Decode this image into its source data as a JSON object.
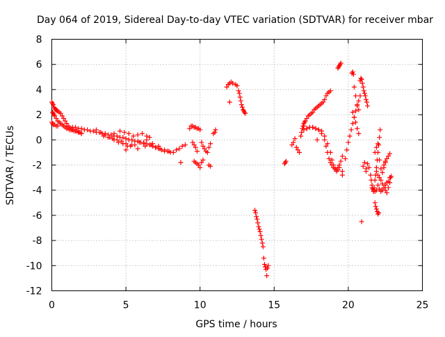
{
  "chart_data": {
    "type": "scatter",
    "title": "Day 064 of 2019, Sidereal Day-to-day VTEC variation (SDTVAR) for receiver mbar",
    "xlabel": "GPS time / hours",
    "ylabel": "SDTVAR / TECUs",
    "xlim": [
      0,
      25
    ],
    "ylim": [
      -12,
      8
    ],
    "xticks": [
      0,
      5,
      10,
      15,
      20,
      25
    ],
    "yticks": [
      -12,
      -10,
      -8,
      -6,
      -4,
      -2,
      0,
      2,
      4,
      6,
      8
    ],
    "xtick_labels": [
      "0",
      "5",
      "10",
      "15",
      "20",
      "25"
    ],
    "ytick_labels": [
      "-12",
      "-10",
      "-8",
      "-6",
      "-4",
      "-2",
      "0",
      "2",
      "4",
      "6",
      "8"
    ],
    "grid": true,
    "marker": "+",
    "series": [
      {
        "name": "SDTVAR",
        "color": "#ff0000",
        "x": [
          0.0,
          0.05,
          0.1,
          0.15,
          0.2,
          0.25,
          0.3,
          0.35,
          0.4,
          0.5,
          0.6,
          0.7,
          0.8,
          0.9,
          1.0,
          1.1,
          1.2,
          1.3,
          1.4,
          1.5,
          1.6,
          1.7,
          1.8,
          1.9,
          2.0,
          0.05,
          0.1,
          0.15,
          0.2,
          0.3,
          0.4,
          0.5,
          0.6,
          0.7,
          0.8,
          0.9,
          1.0,
          1.1,
          1.2,
          1.3,
          1.4,
          1.5,
          1.6,
          1.7,
          1.8,
          1.9,
          2.0,
          0.0,
          0.05,
          0.1,
          0.2,
          0.3,
          0.4,
          1.4,
          1.6,
          1.8,
          2.0,
          2.2,
          2.4,
          2.6,
          2.8,
          3.0,
          3.2,
          3.4,
          3.6,
          3.8,
          4.0,
          4.2,
          4.4,
          4.6,
          4.8,
          5.0,
          5.2,
          5.4,
          5.6,
          5.8,
          6.0,
          6.2,
          6.4,
          6.6,
          6.8,
          7.0,
          7.2,
          7.4,
          7.6,
          7.8,
          8.0,
          8.2,
          8.4,
          8.6,
          8.8,
          9.0,
          3.0,
          3.3,
          3.6,
          3.9,
          4.2,
          4.5,
          4.8,
          5.1,
          5.4,
          3.5,
          3.8,
          4.1,
          4.4,
          4.7,
          5.0,
          5.3,
          5.6,
          5.9,
          6.2,
          6.4,
          6.6,
          4.2,
          4.6,
          4.9,
          5.2,
          5.5,
          5.8,
          6.1,
          6.4,
          6.7,
          7.0,
          7.3,
          7.6,
          7.9,
          5.0,
          5.8,
          6.3,
          6.8,
          7.2,
          8.7,
          9.3,
          9.4,
          9.5,
          9.6,
          9.7,
          9.8,
          9.9,
          10.0,
          10.1,
          10.2,
          10.3,
          10.4,
          10.5,
          10.6,
          10.7,
          9.6,
          9.7,
          9.8,
          9.9,
          10.0,
          10.1,
          10.2,
          9.5,
          9.6,
          9.7,
          9.8,
          10.6,
          10.7,
          10.9,
          11.0,
          11.05,
          11.8,
          11.9,
          12.0,
          12.1,
          12.2,
          12.4,
          12.5,
          12.6,
          12.65,
          12.7,
          12.75,
          12.8,
          12.85,
          12.9,
          12.95,
          13.0,
          13.05,
          12.0,
          13.7,
          13.75,
          13.8,
          13.85,
          13.9,
          13.95,
          14.0,
          14.05,
          14.1,
          14.15,
          14.2,
          14.25,
          14.3,
          14.35,
          14.4,
          14.45,
          14.5,
          14.55,
          14.6,
          15.7,
          15.75,
          15.8,
          16.2,
          16.3,
          16.4,
          16.5,
          16.6,
          16.7,
          16.8,
          16.85,
          16.9,
          16.95,
          17.0,
          17.05,
          17.1,
          17.2,
          17.3,
          17.4,
          17.5,
          17.6,
          17.7,
          17.8,
          17.9,
          18.0,
          18.1,
          18.2,
          18.3,
          18.4,
          18.5,
          18.6,
          18.7,
          18.8,
          17.0,
          17.2,
          17.4,
          17.6,
          17.8,
          18.0,
          18.2,
          18.4,
          18.6,
          18.8,
          18.9,
          19.0,
          19.1,
          19.2,
          19.3,
          19.4,
          19.5,
          19.6,
          17.0,
          17.2,
          17.4,
          17.6,
          17.8,
          18.0,
          18.2,
          18.4,
          18.5,
          18.6,
          18.7,
          18.8,
          18.9,
          19.0,
          19.1,
          19.2,
          19.3,
          19.4,
          19.6,
          17.9,
          19.3,
          19.35,
          19.4,
          19.45,
          19.5,
          19.6,
          19.8,
          19.9,
          20.0,
          20.1,
          20.2,
          20.3,
          20.4,
          20.5,
          20.6,
          20.7,
          20.8,
          20.25,
          20.3,
          20.35,
          20.4,
          20.5,
          20.6,
          20.7,
          20.3,
          20.4,
          20.5,
          20.6,
          20.7,
          20.8,
          20.85,
          20.9,
          20.95,
          21.0,
          21.05,
          21.1,
          21.15,
          21.2,
          21.25,
          21.3,
          21.1,
          21.2,
          21.0,
          21.2,
          21.3,
          20.9,
          21.4,
          21.5,
          21.55,
          21.6,
          21.65,
          21.7,
          21.75,
          21.8,
          21.85,
          21.9,
          21.95,
          22.0,
          22.05,
          22.1,
          22.15,
          21.8,
          21.85,
          21.9,
          21.95,
          22.0,
          22.05,
          21.9,
          22.0,
          22.1,
          22.2,
          22.3,
          22.4,
          22.5,
          22.6,
          22.7,
          22.8,
          22.85,
          22.9,
          21.8,
          21.9,
          22.0,
          22.1,
          22.2,
          22.3,
          22.4,
          22.5,
          22.6,
          22.7,
          22.8,
          21.6,
          21.7,
          21.8,
          21.9,
          22.0,
          22.1,
          22.2,
          22.3,
          22.4,
          22.5,
          22.6,
          22.7,
          22.8,
          22.4,
          22.5
        ],
        "y": [
          3.0,
          2.9,
          2.8,
          2.6,
          2.5,
          2.4,
          2.4,
          2.3,
          2.3,
          2.2,
          2.1,
          1.9,
          1.7,
          1.5,
          1.3,
          1.1,
          1.0,
          0.9,
          0.8,
          0.8,
          0.7,
          0.7,
          0.6,
          0.6,
          0.5,
          2.2,
          2.1,
          2.0,
          1.9,
          1.7,
          1.5,
          1.4,
          1.3,
          1.2,
          1.1,
          1.0,
          0.9,
          0.9,
          0.8,
          0.8,
          0.8,
          0.7,
          0.7,
          0.7,
          0.6,
          0.6,
          0.5,
          1.4,
          1.3,
          1.2,
          1.2,
          1.1,
          1.1,
          1.0,
          1.0,
          0.9,
          0.9,
          0.8,
          0.8,
          0.7,
          0.7,
          0.6,
          0.6,
          0.5,
          0.5,
          0.4,
          0.4,
          0.3,
          0.3,
          0.2,
          0.2,
          0.1,
          0.0,
          0.0,
          -0.1,
          -0.1,
          -0.2,
          -0.2,
          -0.3,
          -0.4,
          -0.5,
          -0.6,
          -0.7,
          -0.8,
          -0.9,
          -0.9,
          -1.0,
          -1.0,
          -0.8,
          -0.7,
          -0.5,
          -0.4,
          0.8,
          0.6,
          0.4,
          0.2,
          0.0,
          -0.2,
          -0.3,
          -0.5,
          -0.4,
          0.3,
          0.2,
          0.1,
          0.0,
          -0.1,
          -0.3,
          -0.5,
          -0.4,
          -0.2,
          -0.3,
          0.0,
          0.2,
          0.5,
          0.7,
          0.6,
          0.5,
          0.3,
          0.4,
          0.5,
          0.3,
          -0.4,
          -0.6,
          -0.7,
          -0.8,
          -0.9,
          -0.8,
          -0.7,
          -0.5,
          -0.3,
          -0.5,
          -1.8,
          0.9,
          1.1,
          1.1,
          1.0,
          1.0,
          0.9,
          0.9,
          0.8,
          -0.2,
          -0.5,
          -0.7,
          -0.9,
          -1.0,
          -0.6,
          -0.3,
          -1.7,
          -1.8,
          -1.9,
          -2.0,
          -2.2,
          -1.8,
          -1.6,
          -0.2,
          -0.4,
          -0.6,
          -0.9,
          -2.0,
          -2.1,
          0.5,
          0.6,
          0.8,
          4.2,
          4.4,
          4.5,
          4.6,
          4.5,
          4.4,
          4.3,
          3.9,
          3.7,
          3.4,
          3.1,
          2.8,
          2.6,
          2.4,
          2.3,
          2.2,
          2.1,
          3.0,
          -5.6,
          -5.8,
          -6.1,
          -6.3,
          -6.6,
          -6.9,
          -7.1,
          -7.3,
          -7.6,
          -7.9,
          -8.2,
          -8.5,
          -9.4,
          -9.9,
          -10.1,
          -10.3,
          -10.8,
          -10.2,
          -10.0,
          -1.9,
          -1.8,
          -1.7,
          -0.4,
          -0.2,
          0.1,
          -0.6,
          -0.8,
          -1.0,
          0.3,
          0.6,
          0.9,
          1.1,
          1.3,
          1.4,
          1.5,
          1.7,
          1.9,
          2.0,
          2.1,
          2.2,
          2.4,
          2.5,
          2.6,
          2.7,
          2.8,
          2.9,
          3.0,
          3.2,
          3.5,
          3.7,
          3.8,
          3.9,
          1.1,
          0.9,
          1.0,
          1.0,
          0.9,
          0.8,
          0.7,
          0.3,
          -0.3,
          -1.0,
          -1.6,
          -2.0,
          -2.3,
          -2.5,
          -2.4,
          -2.2,
          -1.7,
          -1.3,
          0.8,
          0.9,
          1.0,
          1.0,
          0.9,
          0.8,
          0.5,
          0.0,
          -0.5,
          -1.0,
          -1.5,
          -1.8,
          -2.0,
          -2.2,
          -2.3,
          -2.4,
          -2.2,
          -2.0,
          -2.8,
          0.0,
          5.7,
          5.8,
          5.9,
          6.0,
          6.1,
          -2.5,
          -1.5,
          -0.8,
          -0.2,
          0.3,
          0.8,
          1.3,
          1.8,
          2.3,
          2.7,
          3.1,
          3.5,
          5.3,
          5.4,
          5.2,
          4.2,
          3.5,
          2.8,
          2.4,
          2.2,
          1.8,
          1.4,
          0.9,
          0.5,
          4.7,
          4.9,
          4.8,
          4.5,
          4.2,
          3.9,
          3.7,
          3.5,
          3.2,
          3.0,
          2.7,
          -1.8,
          -2.3,
          -2.1,
          -2.5,
          -1.9,
          -6.5,
          -2.2,
          -2.8,
          -3.2,
          -3.6,
          -3.9,
          -4.1,
          -3.8,
          -3.2,
          -2.8,
          -2.2,
          -1.6,
          -1.0,
          -0.4,
          0.2,
          0.8,
          -5.0,
          -5.3,
          -5.5,
          -5.7,
          -5.9,
          -5.8,
          -2.5,
          -2.8,
          -3.0,
          -3.2,
          -3.5,
          -3.8,
          -4.0,
          -4.2,
          -3.8,
          -3.4,
          -3.0,
          -2.9,
          -1.0,
          -0.6,
          -0.3,
          -1.6,
          -2.3,
          -2.6,
          -2.2,
          -1.8,
          -1.5,
          -1.3,
          -1.1,
          -3.8,
          -4.0,
          -4.1,
          -4.0,
          -3.6,
          -3.9,
          -4.1,
          -4.0,
          -3.8,
          -3.6,
          -3.4,
          -3.3,
          -3.0,
          -2.0,
          -1.7
        ]
      }
    ]
  }
}
